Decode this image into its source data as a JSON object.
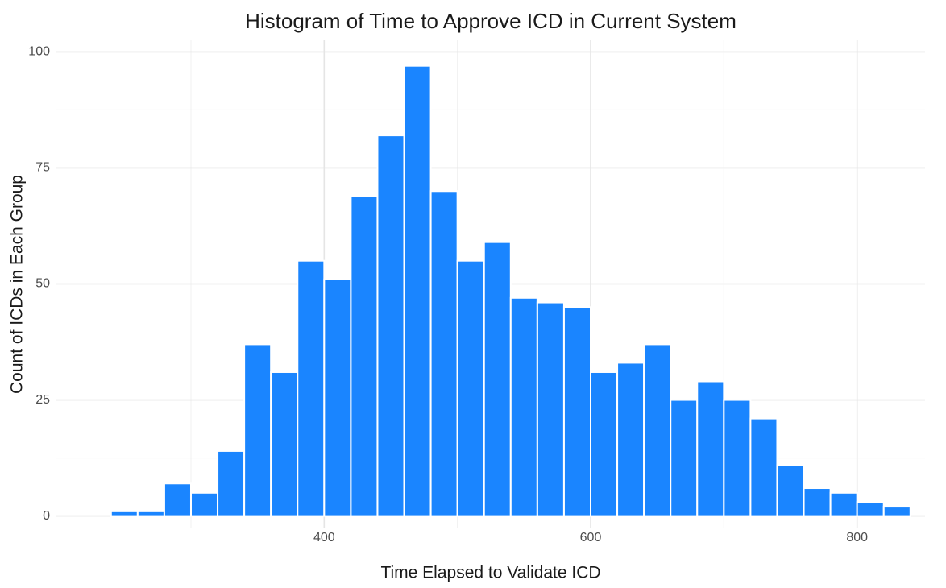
{
  "chart_data": {
    "type": "histogram",
    "title": "Histogram of Time to Approve ICD in Current System",
    "x_label": "Time Elapsed to Validate ICD",
    "y_label": "Count of ICDs in Each Group",
    "bins": [
      240,
      260,
      280,
      300,
      320,
      340,
      360,
      380,
      400,
      420,
      440,
      460,
      480,
      500,
      520,
      540,
      560,
      580,
      600,
      620,
      640,
      660,
      680,
      700,
      720,
      740,
      760,
      780,
      800,
      820,
      840
    ],
    "values": [
      1,
      1,
      7,
      5,
      14,
      37,
      31,
      55,
      51,
      69,
      82,
      97,
      70,
      55,
      59,
      47,
      46,
      45,
      31,
      33,
      37,
      25,
      29,
      25,
      21,
      11,
      6,
      5,
      3,
      2
    ],
    "color": "#1a85ff",
    "xlim": [
      199,
      851
    ],
    "ylim": [
      -2.5,
      102.5
    ],
    "xticks": [
      400,
      600,
      800
    ],
    "yticks": [
      0,
      25,
      50,
      75,
      100
    ],
    "minor_xticks": [
      300,
      500,
      700
    ],
    "minor_yticks": [
      12.5,
      37.5,
      62.5,
      87.5
    ],
    "grid": true
  }
}
